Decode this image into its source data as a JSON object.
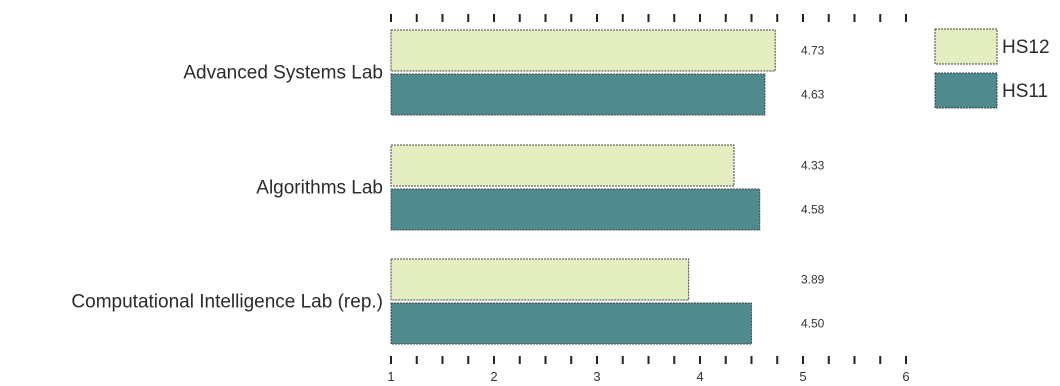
{
  "chart_data": {
    "type": "bar",
    "orientation": "horizontal",
    "categories": [
      "Advanced Systems Lab",
      "Algorithms Lab",
      "Computational Intelligence Lab (rep.)"
    ],
    "series": [
      {
        "name": "HS12",
        "values": [
          4.73,
          4.33,
          3.89
        ],
        "value_labels": [
          "4.73",
          "4.33",
          "3.89"
        ],
        "color": "#e4eec0"
      },
      {
        "name": "HS11",
        "values": [
          4.63,
          4.58,
          4.5
        ],
        "value_labels": [
          "4.63",
          "4.58",
          "4.50"
        ],
        "color": "#4f8a8c"
      }
    ],
    "xlim": [
      1,
      6
    ],
    "x_ticks": [
      "1",
      "2",
      "3",
      "4",
      "5",
      "6"
    ],
    "legend_placement": "top-right",
    "grid": false,
    "title": "",
    "xlabel": "",
    "ylabel": ""
  }
}
